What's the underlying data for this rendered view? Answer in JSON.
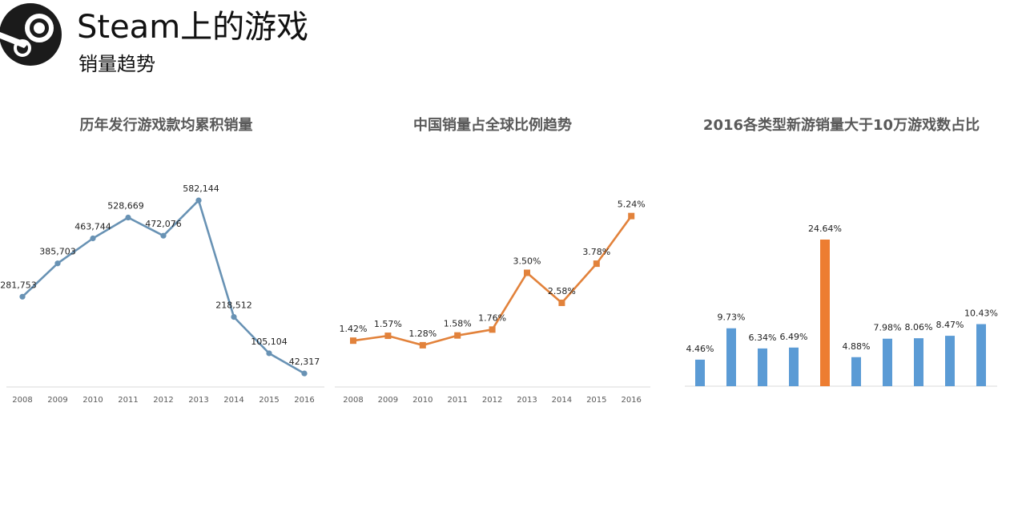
{
  "header": {
    "title": "Steam上的游戏",
    "subtitle": "销量趋势"
  },
  "colors": {
    "blue": "#6892b4",
    "orange": "#e2823b",
    "bar_blue": "#5b9bd5",
    "bar_highlight": "#ed7d31",
    "axis": "#d9d9d9"
  },
  "chart_data": [
    {
      "type": "line",
      "title": "历年发行游戏款均累积销量",
      "categories": [
        "2008",
        "2009",
        "2010",
        "2011",
        "2012",
        "2013",
        "2014",
        "2015",
        "2016"
      ],
      "values": [
        281753,
        385703,
        463744,
        528669,
        472076,
        582144,
        218512,
        105104,
        42317
      ],
      "labels": [
        "281,753",
        "385,703",
        "463,744",
        "528,669",
        "472,076",
        "582,144",
        "218,512",
        "105,104",
        "42,317"
      ],
      "ylim": [
        0,
        650000
      ],
      "color": "#6892b4",
      "marker": "circle",
      "grid": false
    },
    {
      "type": "line",
      "title": "中国销量占全球比例趋势",
      "categories": [
        "2008",
        "2009",
        "2010",
        "2011",
        "2012",
        "2013",
        "2014",
        "2015",
        "2016"
      ],
      "values": [
        1.42,
        1.57,
        1.28,
        1.58,
        1.76,
        3.5,
        2.58,
        3.78,
        5.24
      ],
      "labels": [
        "1.42%",
        "1.57%",
        "1.28%",
        "1.58%",
        "1.76%",
        "3.50%",
        "2.58%",
        "3.78%",
        "5.24%"
      ],
      "ylim": [
        0,
        7.0
      ],
      "color": "#e2823b",
      "marker": "square",
      "grid": false
    },
    {
      "type": "bar",
      "title": "2016各类型新游销量大于10万游戏数占比",
      "values": [
        4.46,
        9.73,
        6.34,
        6.49,
        24.64,
        4.88,
        7.98,
        8.06,
        8.47,
        10.43
      ],
      "labels": [
        "4.46%",
        "9.73%",
        "6.34%",
        "6.49%",
        "24.64%",
        "4.88%",
        "7.98%",
        "8.06%",
        "8.47%",
        "10.43%"
      ],
      "highlight_index": 4,
      "ylim": [
        0,
        30
      ],
      "grid": false
    }
  ]
}
